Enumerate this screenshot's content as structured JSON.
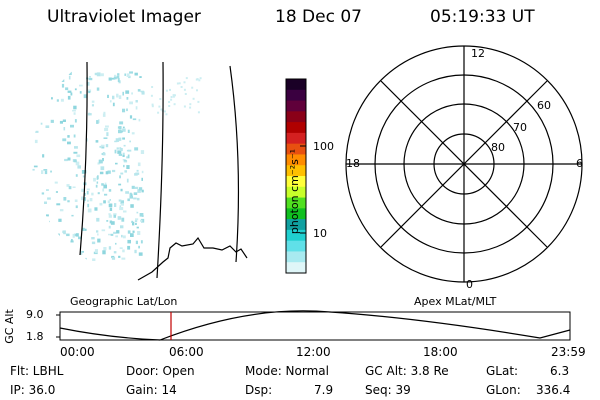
{
  "header": {
    "title": "Ultraviolet Imager",
    "date": "18 Dec 07",
    "time": "05:19:33 UT"
  },
  "colorbar": {
    "unit_label": "photon cm⁻²s⁻¹",
    "ticks": [
      "100",
      "10"
    ],
    "colors": [
      "#1a0026",
      "#3a0040",
      "#60003a",
      "#8a0018",
      "#b00000",
      "#d42020",
      "#e85010",
      "#ff8c00",
      "#ffc000",
      "#ffff3a",
      "#c8ff2a",
      "#50e020",
      "#10c020",
      "#10a0a0",
      "#20d0d0",
      "#60e0e8",
      "#a8eaf0",
      "#dff6f8"
    ]
  },
  "polar": {
    "mlt_labels": {
      "top": "12",
      "right": "6",
      "bottom": "0",
      "left": "18"
    },
    "lat_labels": [
      "60",
      "70",
      "80"
    ]
  },
  "timeline": {
    "left_title": "Geographic Lat/Lon",
    "right_title": "Apex MLat/MLT",
    "axis_name": "GC Alt",
    "y_ticks": [
      "9.0",
      "1.8"
    ],
    "x_ticks": [
      "00:00",
      "06:00",
      "12:00",
      "18:00",
      "23:59"
    ],
    "marker_time": "05:19:33",
    "marker_color": "#c00000"
  },
  "info": {
    "flt": "Flt: LBHL",
    "door": "Door: Open",
    "mode": "Mode: Normal",
    "gc_alt": "GC Alt: 3.8 Re",
    "glat_label": "GLat:",
    "glat_value": "6.3",
    "ip": "IP: 36.0",
    "gain": "Gain: 14",
    "dsp_label": "Dsp:",
    "dsp_value": "7.9",
    "seq": "Seq: 39",
    "glon_label": "GLon:",
    "glon_value": "336.4"
  }
}
